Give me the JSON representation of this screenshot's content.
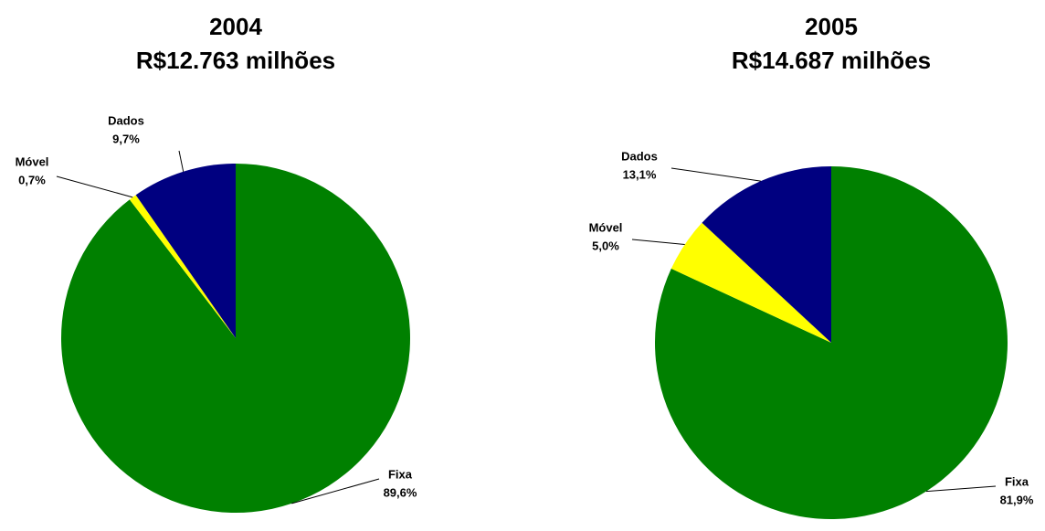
{
  "chart_data": [
    {
      "type": "pie",
      "title": "2004",
      "subtitle": "R$12.763 milhões",
      "categories": [
        "Fixa",
        "Móvel",
        "Dados"
      ],
      "values": [
        89.6,
        0.7,
        9.7
      ],
      "value_labels": [
        "89,6%",
        "0,7%",
        "9,7%"
      ],
      "colors": [
        "#008000",
        "#ffff00",
        "#000080"
      ]
    },
    {
      "type": "pie",
      "title": "2005",
      "subtitle": "R$14.687 milhões",
      "categories": [
        "Fixa",
        "Móvel",
        "Dados"
      ],
      "values": [
        81.9,
        5.0,
        13.1
      ],
      "value_labels": [
        "81,9%",
        "5,0%",
        "13,1%"
      ],
      "colors": [
        "#008000",
        "#ffff00",
        "#000080"
      ]
    }
  ]
}
